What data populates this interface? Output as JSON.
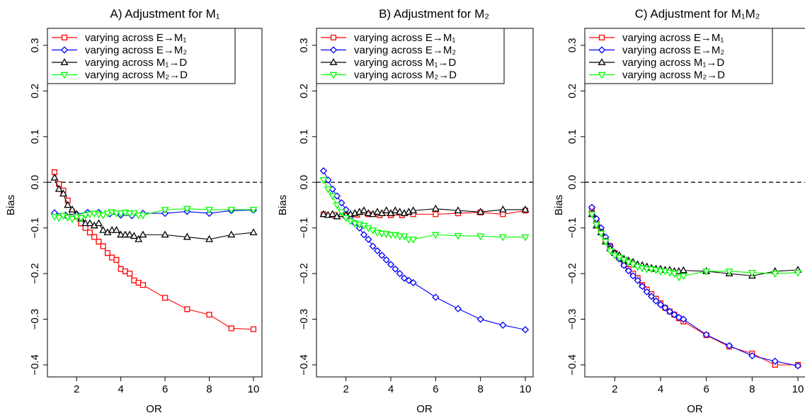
{
  "colors": {
    "red": "#ff0000",
    "blue": "#0000ff",
    "black": "#000000",
    "green": "#00ff00"
  },
  "legend": [
    "varying across E→M₁",
    "varying across E→M₂",
    "varying across M₁→D",
    "varying across M₂→D"
  ],
  "chart_data": [
    {
      "type": "line",
      "title": "A)   Adjustment for M₁",
      "xlabel": "OR",
      "ylabel": "Bias",
      "xlim": [
        1,
        10
      ],
      "ylim": [
        -0.4,
        0.3
      ],
      "xticks": [
        "2",
        "4",
        "6",
        "8",
        "10"
      ],
      "yticks": [
        "−0.4",
        "−0.3",
        "−0.2",
        "−0.1",
        "0.0",
        "0.1",
        "0.2",
        "0.3"
      ],
      "reference_line": 0,
      "legend_position": "top-left",
      "series": [
        {
          "name": "varying across E→M₁",
          "color": "red",
          "marker": "square",
          "x": [
            1.0,
            1.2,
            1.4,
            1.6,
            1.8,
            2.0,
            2.2,
            2.4,
            2.6,
            2.8,
            3.0,
            3.2,
            3.4,
            3.6,
            3.8,
            4.0,
            4.2,
            4.4,
            4.6,
            4.8,
            5.0,
            6,
            7,
            8,
            9,
            10
          ],
          "y": [
            0.022,
            -0.004,
            -0.018,
            -0.04,
            -0.065,
            -0.075,
            -0.09,
            -0.1,
            -0.11,
            -0.12,
            -0.13,
            -0.14,
            -0.155,
            -0.165,
            -0.17,
            -0.19,
            -0.195,
            -0.2,
            -0.215,
            -0.22,
            -0.225,
            -0.253,
            -0.278,
            -0.29,
            -0.32,
            -0.322
          ]
        },
        {
          "name": "varying across E→M₂",
          "color": "blue",
          "marker": "diamond",
          "x": [
            1.0,
            1.5,
            2.0,
            2.5,
            3.0,
            3.5,
            4.0,
            4.5,
            5.0,
            6,
            7,
            8,
            9,
            10
          ],
          "y": [
            -0.067,
            -0.072,
            -0.07,
            -0.066,
            -0.066,
            -0.069,
            -0.072,
            -0.073,
            -0.068,
            -0.068,
            -0.064,
            -0.068,
            -0.062,
            -0.061
          ]
        },
        {
          "name": "varying across M₁→D",
          "color": "black",
          "marker": "triangle",
          "x": [
            1.0,
            1.2,
            1.4,
            1.6,
            1.8,
            2.0,
            2.2,
            2.4,
            2.6,
            2.8,
            3.0,
            3.2,
            3.4,
            3.6,
            3.8,
            4.0,
            4.2,
            4.4,
            4.6,
            4.8,
            5.0,
            6,
            7,
            8,
            9,
            10
          ],
          "y": [
            0.01,
            -0.015,
            -0.025,
            -0.05,
            -0.06,
            -0.07,
            -0.08,
            -0.09,
            -0.09,
            -0.095,
            -0.09,
            -0.105,
            -0.11,
            -0.105,
            -0.105,
            -0.115,
            -0.115,
            -0.115,
            -0.118,
            -0.125,
            -0.115,
            -0.115,
            -0.12,
            -0.125,
            -0.115,
            -0.11
          ]
        },
        {
          "name": "varying across M₂→D",
          "color": "green",
          "marker": "invtriangle",
          "x": [
            1.0,
            1.2,
            1.4,
            1.6,
            1.8,
            2.0,
            2.2,
            2.4,
            2.6,
            2.8,
            3.0,
            3.2,
            3.4,
            3.6,
            3.8,
            4.0,
            4.2,
            4.4,
            4.6,
            4.8,
            5.0,
            6,
            7,
            8,
            9,
            10
          ],
          "y": [
            -0.075,
            -0.078,
            -0.073,
            -0.077,
            -0.08,
            -0.075,
            -0.078,
            -0.072,
            -0.07,
            -0.068,
            -0.07,
            -0.072,
            -0.068,
            -0.065,
            -0.068,
            -0.068,
            -0.066,
            -0.068,
            -0.067,
            -0.072,
            -0.072,
            -0.06,
            -0.058,
            -0.06,
            -0.06,
            -0.06
          ]
        }
      ]
    },
    {
      "type": "line",
      "title": "B)   Adjustment for M₂",
      "xlabel": "OR",
      "ylabel": "Bias",
      "xlim": [
        1,
        10
      ],
      "ylim": [
        -0.4,
        0.3
      ],
      "xticks": [
        "2",
        "4",
        "6",
        "8",
        "10"
      ],
      "yticks": [
        "−0.4",
        "−0.3",
        "−0.2",
        "−0.1",
        "0.0",
        "0.1",
        "0.2",
        "0.3"
      ],
      "reference_line": 0,
      "legend_position": "top-left",
      "series": [
        {
          "name": "varying across E→M₁",
          "color": "red",
          "marker": "square",
          "x": [
            1.0,
            1.5,
            2.0,
            2.5,
            3.0,
            3.5,
            4.0,
            4.5,
            5.0,
            6,
            7,
            8,
            9,
            10
          ],
          "y": [
            -0.07,
            -0.072,
            -0.073,
            -0.071,
            -0.07,
            -0.072,
            -0.072,
            -0.072,
            -0.07,
            -0.07,
            -0.068,
            -0.066,
            -0.07,
            -0.062
          ]
        },
        {
          "name": "varying across E→M₂",
          "color": "blue",
          "marker": "diamond",
          "x": [
            1.0,
            1.2,
            1.4,
            1.6,
            1.8,
            2.0,
            2.2,
            2.4,
            2.6,
            2.8,
            3.0,
            3.2,
            3.4,
            3.6,
            3.8,
            4.0,
            4.2,
            4.4,
            4.6,
            4.8,
            5.0,
            6,
            7,
            8,
            9,
            10
          ],
          "y": [
            0.025,
            0.005,
            -0.015,
            -0.03,
            -0.045,
            -0.06,
            -0.075,
            -0.09,
            -0.1,
            -0.115,
            -0.125,
            -0.14,
            -0.15,
            -0.16,
            -0.17,
            -0.18,
            -0.19,
            -0.2,
            -0.21,
            -0.215,
            -0.22,
            -0.252,
            -0.277,
            -0.3,
            -0.313,
            -0.323
          ]
        },
        {
          "name": "varying across M₁→D",
          "color": "black",
          "marker": "triangle",
          "x": [
            1.0,
            1.2,
            1.4,
            1.6,
            1.8,
            2.0,
            2.2,
            2.4,
            2.6,
            2.8,
            3.0,
            3.2,
            3.4,
            3.6,
            3.8,
            4.0,
            4.2,
            4.4,
            4.6,
            4.8,
            5.0,
            6,
            7,
            8,
            9,
            10
          ],
          "y": [
            -0.07,
            -0.072,
            -0.07,
            -0.075,
            -0.07,
            -0.072,
            -0.07,
            -0.068,
            -0.065,
            -0.062,
            -0.068,
            -0.07,
            -0.065,
            -0.068,
            -0.062,
            -0.068,
            -0.062,
            -0.065,
            -0.068,
            -0.065,
            -0.062,
            -0.058,
            -0.062,
            -0.065,
            -0.06,
            -0.06
          ]
        },
        {
          "name": "varying across M₂→D",
          "color": "green",
          "marker": "invtriangle",
          "x": [
            1.0,
            1.2,
            1.4,
            1.6,
            1.8,
            2.0,
            2.2,
            2.4,
            2.6,
            2.8,
            3.0,
            3.2,
            3.4,
            3.6,
            3.8,
            4.0,
            4.2,
            4.4,
            4.6,
            4.8,
            5.0,
            6,
            7,
            8,
            9,
            10
          ],
          "y": [
            0.005,
            -0.015,
            -0.03,
            -0.05,
            -0.065,
            -0.078,
            -0.085,
            -0.09,
            -0.092,
            -0.095,
            -0.1,
            -0.105,
            -0.11,
            -0.112,
            -0.113,
            -0.115,
            -0.115,
            -0.118,
            -0.118,
            -0.125,
            -0.125,
            -0.115,
            -0.117,
            -0.118,
            -0.12,
            -0.12
          ]
        }
      ]
    },
    {
      "type": "line",
      "title": "C)   Adjustment for M₁M₂",
      "xlabel": "OR",
      "ylabel": "Bias",
      "xlim": [
        1,
        10
      ],
      "ylim": [
        -0.4,
        0.3
      ],
      "xticks": [
        "2",
        "4",
        "6",
        "8",
        "10"
      ],
      "yticks": [
        "−0.4",
        "−0.3",
        "−0.2",
        "−0.1",
        "0.0",
        "0.1",
        "0.2",
        "0.3"
      ],
      "reference_line": 0,
      "legend_position": "top-left",
      "series": [
        {
          "name": "varying across E→M₁",
          "color": "red",
          "marker": "square",
          "x": [
            1.0,
            1.2,
            1.4,
            1.6,
            1.8,
            2.0,
            2.2,
            2.4,
            2.6,
            2.8,
            3.0,
            3.2,
            3.4,
            3.6,
            3.8,
            4.0,
            4.2,
            4.4,
            4.6,
            4.8,
            5.0,
            6,
            7,
            8,
            9,
            10
          ],
          "y": [
            -0.058,
            -0.085,
            -0.105,
            -0.125,
            -0.14,
            -0.155,
            -0.165,
            -0.18,
            -0.19,
            -0.2,
            -0.21,
            -0.225,
            -0.235,
            -0.245,
            -0.255,
            -0.265,
            -0.275,
            -0.283,
            -0.29,
            -0.298,
            -0.305,
            -0.335,
            -0.36,
            -0.375,
            -0.4,
            -0.4
          ]
        },
        {
          "name": "varying across E→M₂",
          "color": "blue",
          "marker": "diamond",
          "x": [
            1.0,
            1.2,
            1.4,
            1.6,
            1.8,
            2.0,
            2.2,
            2.4,
            2.6,
            2.8,
            3.0,
            3.2,
            3.4,
            3.6,
            3.8,
            4.0,
            4.2,
            4.4,
            4.6,
            4.8,
            5.0,
            6,
            7,
            8,
            9,
            10
          ],
          "y": [
            -0.055,
            -0.08,
            -0.1,
            -0.12,
            -0.14,
            -0.155,
            -0.168,
            -0.182,
            -0.194,
            -0.205,
            -0.215,
            -0.228,
            -0.24,
            -0.25,
            -0.26,
            -0.268,
            -0.275,
            -0.283,
            -0.29,
            -0.296,
            -0.3,
            -0.334,
            -0.358,
            -0.38,
            -0.392,
            -0.402
          ]
        },
        {
          "name": "varying across M₁→D",
          "color": "black",
          "marker": "triangle",
          "x": [
            1.0,
            1.2,
            1.4,
            1.6,
            1.8,
            2.0,
            2.2,
            2.4,
            2.6,
            2.8,
            3.0,
            3.2,
            3.4,
            3.6,
            3.8,
            4.0,
            4.2,
            4.4,
            4.6,
            4.8,
            5.0,
            6,
            7,
            8,
            9,
            10
          ],
          "y": [
            -0.07,
            -0.095,
            -0.11,
            -0.13,
            -0.145,
            -0.155,
            -0.16,
            -0.168,
            -0.172,
            -0.175,
            -0.18,
            -0.182,
            -0.185,
            -0.188,
            -0.19,
            -0.19,
            -0.192,
            -0.192,
            -0.195,
            -0.195,
            -0.193,
            -0.195,
            -0.2,
            -0.205,
            -0.195,
            -0.192
          ]
        },
        {
          "name": "varying across M₂→D",
          "color": "green",
          "marker": "invtriangle",
          "x": [
            1.0,
            1.2,
            1.4,
            1.6,
            1.8,
            2.0,
            2.2,
            2.4,
            2.6,
            2.8,
            3.0,
            3.2,
            3.4,
            3.6,
            3.8,
            4.0,
            4.2,
            4.4,
            4.6,
            4.8,
            5.0,
            6,
            7,
            8,
            9,
            10
          ],
          "y": [
            -0.07,
            -0.093,
            -0.112,
            -0.13,
            -0.15,
            -0.16,
            -0.165,
            -0.17,
            -0.175,
            -0.18,
            -0.185,
            -0.188,
            -0.19,
            -0.19,
            -0.192,
            -0.195,
            -0.195,
            -0.198,
            -0.2,
            -0.208,
            -0.205,
            -0.195,
            -0.195,
            -0.198,
            -0.2,
            -0.198
          ]
        }
      ]
    }
  ]
}
